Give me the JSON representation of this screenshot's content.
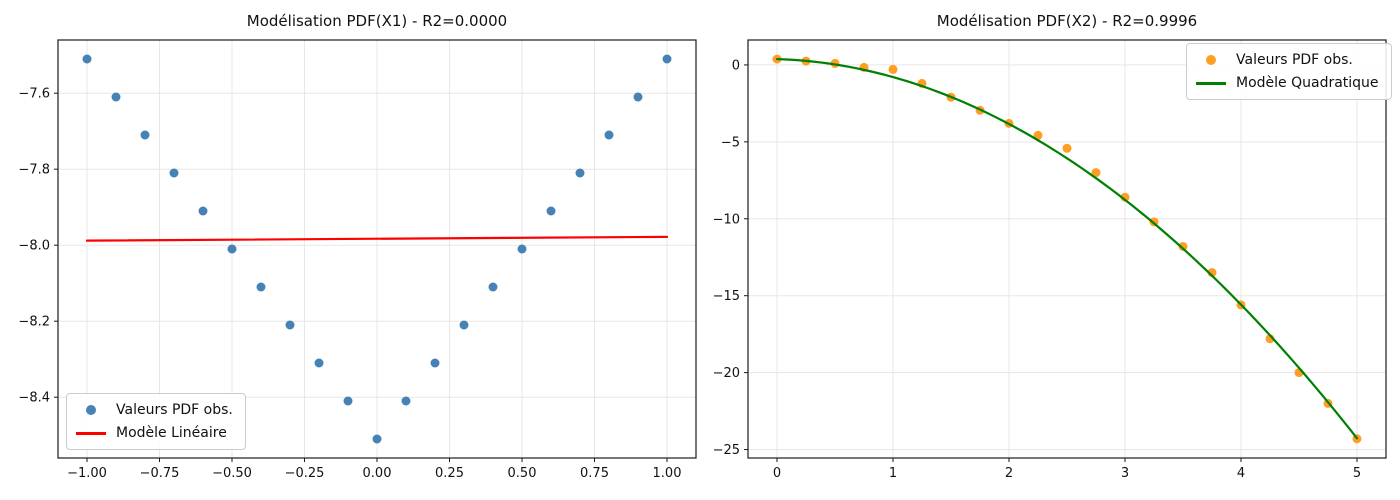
{
  "figure": {
    "background": "#ffffff",
    "grid_color": "#e7e7e7",
    "spine_color": "#1a1a1a",
    "text_color": "#111111"
  },
  "chart_data": [
    {
      "type": "scatter",
      "title": "Modélisation PDF(X1) - R2=0.0000",
      "xlabel": "",
      "ylabel": "",
      "xlim": [
        -1.1,
        1.1
      ],
      "ylim": [
        -8.56,
        -7.46
      ],
      "grid": true,
      "legend_position": "lower-left",
      "xticks": [
        -1.0,
        -0.75,
        -0.5,
        -0.25,
        0.0,
        0.25,
        0.5,
        0.75,
        1.0
      ],
      "xtick_labels": [
        "−1.00",
        "−0.75",
        "−0.50",
        "−0.25",
        "0.00",
        "0.25",
        "0.50",
        "0.75",
        "1.00"
      ],
      "yticks": [
        -7.6,
        -7.8,
        -8.0,
        -8.2,
        -8.4
      ],
      "ytick_labels": [
        "−7.6",
        "−7.8",
        "−8.0",
        "−8.2",
        "−8.4"
      ],
      "series": [
        {
          "name": "Valeurs PDF obs.",
          "kind": "scatter",
          "color": "#4682b4",
          "x": [
            -1.0,
            -0.9,
            -0.8,
            -0.7,
            -0.6,
            -0.5,
            -0.4,
            -0.3,
            -0.2,
            -0.1,
            0.0,
            0.1,
            0.2,
            0.3,
            0.4,
            0.5,
            0.6,
            0.7,
            0.8,
            0.9,
            1.0
          ],
          "y": [
            -7.51,
            -7.61,
            -7.71,
            -7.81,
            -7.91,
            -8.01,
            -8.11,
            -8.21,
            -8.31,
            -8.41,
            -8.51,
            -8.41,
            -8.31,
            -8.21,
            -8.11,
            -8.01,
            -7.91,
            -7.81,
            -7.71,
            -7.61,
            -7.51
          ]
        },
        {
          "name": "Modèle Linéaire",
          "kind": "line",
          "color": "#ff0000",
          "x": [
            -1.0,
            1.0
          ],
          "y": [
            -7.988,
            -7.978
          ]
        }
      ]
    },
    {
      "type": "scatter",
      "title": "Modélisation PDF(X2) - R2=0.9996",
      "xlabel": "",
      "ylabel": "",
      "xlim": [
        -0.25,
        5.25
      ],
      "ylim": [
        -25.55,
        1.62
      ],
      "grid": true,
      "legend_position": "upper-right",
      "xticks": [
        0,
        1,
        2,
        3,
        4,
        5
      ],
      "xtick_labels": [
        "0",
        "1",
        "2",
        "3",
        "4",
        "5"
      ],
      "yticks": [
        0,
        -5,
        -10,
        -15,
        -20,
        -25
      ],
      "ytick_labels": [
        "0",
        "−5",
        "−10",
        "−15",
        "−20",
        "−25"
      ],
      "series": [
        {
          "name": "Valeurs PDF obs.",
          "kind": "scatter",
          "color": "#ff9d24",
          "x": [
            0.0,
            0.25,
            0.5,
            0.75,
            1.0,
            1.25,
            1.5,
            1.75,
            2.0,
            2.25,
            2.5,
            2.75,
            3.0,
            3.25,
            3.5,
            3.75,
            4.0,
            4.25,
            4.5,
            4.75,
            5.0
          ],
          "y": [
            0.38,
            0.25,
            0.1,
            -0.16,
            -0.29,
            -1.2,
            -2.1,
            -2.95,
            -3.8,
            -4.58,
            -5.42,
            -7.0,
            -8.6,
            -10.2,
            -11.8,
            -13.5,
            -15.6,
            -17.8,
            -20.0,
            -22.0,
            -24.3
          ]
        },
        {
          "name": "Modèle Quadratique",
          "kind": "line",
          "color": "#008000",
          "model": "quadratic",
          "coeffs": [
            -0.94,
            -0.23,
            0.38
          ],
          "x_range": [
            0.0,
            5.0
          ]
        }
      ]
    }
  ]
}
